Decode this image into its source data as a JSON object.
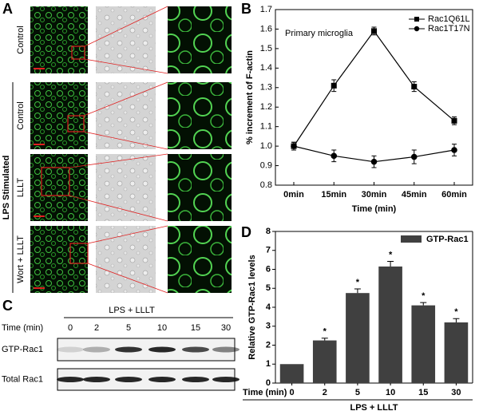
{
  "panel_labels": [
    "A",
    "B",
    "C",
    "D"
  ],
  "panel_a": {
    "row_labels": [
      "Control",
      "Control",
      "LLLT",
      "Wort + LLLT"
    ],
    "group_label": "LPS Stimulated"
  },
  "panel_c": {
    "title": "LPS + LLLT",
    "time_label": "Time (min)",
    "times": [
      "0",
      "2",
      "5",
      "10",
      "15",
      "30"
    ],
    "rows": [
      "GTP-Rac1",
      "Total Rac1"
    ]
  },
  "chart_data": [
    {
      "type": "line",
      "title": "Primary microglia",
      "x_label": "Time (min)",
      "y_label": "% increment of F-actin",
      "categories": [
        "0min",
        "15min",
        "30min",
        "45min",
        "60min"
      ],
      "series": [
        {
          "name": "Rac1Q61L",
          "color": "#000000",
          "marker": "square",
          "values": [
            1.0,
            1.31,
            1.59,
            1.305,
            1.13
          ],
          "errors": [
            0.02,
            0.03,
            0.02,
            0.025,
            0.02
          ]
        },
        {
          "name": "Rac1T17N",
          "color": "#000000",
          "marker": "circle",
          "values": [
            1.0,
            0.95,
            0.92,
            0.945,
            0.98
          ],
          "errors": [
            0.02,
            0.03,
            0.03,
            0.035,
            0.03
          ]
        }
      ],
      "ylim": [
        0.8,
        1.7
      ],
      "yticks": [
        0.8,
        0.9,
        {
          "value": 1,
          "label": "1.0"
        },
        1.1,
        1.2,
        1.3,
        1.4,
        1.5,
        1.6,
        1.7
      ],
      "legend": "upper right"
    },
    {
      "type": "bar",
      "x_prefix": "Time (min)",
      "x_label": "LPS + LLLT",
      "y_label": "Relative GTP-Rac1 levels",
      "categories": [
        "0",
        "2",
        "5",
        "10",
        "15",
        "30"
      ],
      "series": [
        {
          "name": "GTP-Rac1",
          "color": "#404040",
          "values": [
            1.0,
            2.25,
            4.75,
            6.15,
            4.1,
            3.2
          ],
          "errors": [
            0,
            0.12,
            0.22,
            0.27,
            0.15,
            0.2
          ]
        }
      ],
      "significance": [
        null,
        "*",
        "*",
        "*",
        "*",
        "*"
      ],
      "ylim": [
        0,
        8
      ],
      "yticks": [
        0,
        1,
        2,
        3,
        4,
        5,
        6,
        7,
        8
      ],
      "legend": "upper right"
    }
  ]
}
